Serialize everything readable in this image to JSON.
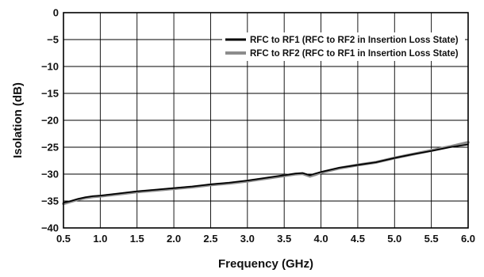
{
  "chart_data": {
    "type": "line",
    "xlabel": "Frequency (GHz)",
    "ylabel": "Isolation (dB)",
    "xlim": [
      0.5,
      6.0
    ],
    "ylim": [
      -40,
      0
    ],
    "x_ticks": [
      "0.5",
      "1.0",
      "1.5",
      "2.0",
      "2.5",
      "3.0",
      "3.5",
      "4.0",
      "4.5",
      "5.0",
      "5.5",
      "6.0"
    ],
    "y_ticks": [
      "0",
      "−5",
      "−10",
      "−15",
      "−20",
      "−25",
      "−30",
      "−35",
      "−40"
    ],
    "grid": true,
    "legend_position": "top-right",
    "series": [
      {
        "name": "RFC to RF1 (RFC to RF2 in Insertion Loss State)",
        "color": "#000000",
        "x": [
          0.5,
          0.6,
          0.7,
          0.8,
          0.9,
          1.0,
          1.25,
          1.5,
          1.75,
          2.0,
          2.25,
          2.5,
          2.75,
          3.0,
          3.25,
          3.5,
          3.65,
          3.75,
          3.85,
          3.92,
          4.0,
          4.25,
          4.5,
          4.75,
          5.0,
          5.25,
          5.5,
          5.75,
          6.0
        ],
        "values": [
          -35.3,
          -35.0,
          -34.6,
          -34.3,
          -34.1,
          -34.0,
          -33.6,
          -33.2,
          -32.9,
          -32.6,
          -32.3,
          -31.9,
          -31.6,
          -31.2,
          -30.7,
          -30.2,
          -29.9,
          -29.8,
          -30.2,
          -29.9,
          -29.6,
          -28.8,
          -28.3,
          -27.8,
          -27.0,
          -26.3,
          -25.7,
          -25.0,
          -24.5
        ]
      },
      {
        "name": "RFC to RF2 (RFC to RF1 in Insertion Loss State)",
        "color": "#8c8c8c",
        "x": [
          0.5,
          0.6,
          0.7,
          0.8,
          0.9,
          1.0,
          1.25,
          1.5,
          1.75,
          2.0,
          2.25,
          2.5,
          2.75,
          3.0,
          3.25,
          3.5,
          3.65,
          3.75,
          3.85,
          3.92,
          4.0,
          4.25,
          4.5,
          4.75,
          5.0,
          5.25,
          5.5,
          5.75,
          6.0
        ],
        "values": [
          -35.5,
          -35.1,
          -34.7,
          -34.4,
          -34.2,
          -34.1,
          -33.7,
          -33.3,
          -33.0,
          -32.7,
          -32.4,
          -32.0,
          -31.7,
          -31.3,
          -30.8,
          -30.3,
          -30.0,
          -29.9,
          -30.4,
          -30.1,
          -29.7,
          -28.9,
          -28.3,
          -27.8,
          -27.0,
          -26.3,
          -25.6,
          -24.9,
          -24.1
        ]
      }
    ]
  }
}
